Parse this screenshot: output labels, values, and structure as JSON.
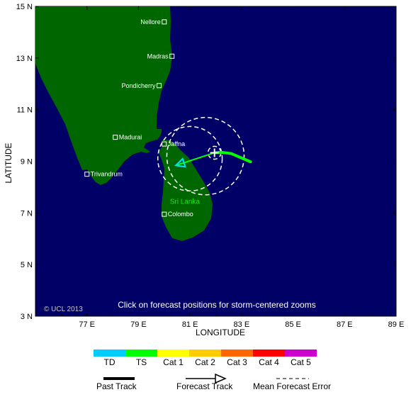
{
  "map": {
    "lon_range": [
      75,
      89
    ],
    "lat_range": [
      3,
      15
    ],
    "ocean_color": "#000066",
    "land_color": "#006600",
    "xlabel": "LONGITUDE",
    "ylabel": "LATITUDE",
    "lon_ticks": [
      {
        "value": 77,
        "label": "77 E"
      },
      {
        "value": 79,
        "label": "79 E"
      },
      {
        "value": 81,
        "label": "81 E"
      },
      {
        "value": 83,
        "label": "83 E"
      },
      {
        "value": 85,
        "label": "85 E"
      },
      {
        "value": 87,
        "label": "87 E"
      },
      {
        "value": 89,
        "label": "89 E"
      }
    ],
    "lat_ticks": [
      {
        "value": 3,
        "label": "3 N"
      },
      {
        "value": 5,
        "label": "5 N"
      },
      {
        "value": 7,
        "label": "7 N"
      },
      {
        "value": 9,
        "label": "9 N"
      },
      {
        "value": 11,
        "label": "11 N"
      },
      {
        "value": 13,
        "label": "13 N"
      },
      {
        "value": 15,
        "label": "15 N"
      }
    ],
    "cities": [
      {
        "name": "Nellore",
        "lon": 80.0,
        "lat": 14.4
      },
      {
        "name": "Madras",
        "lon": 80.3,
        "lat": 13.07
      },
      {
        "name": "Pondicherry",
        "lon": 79.8,
        "lat": 11.93
      },
      {
        "name": "Madurai",
        "lon": 78.1,
        "lat": 9.93
      },
      {
        "name": "Jaffna",
        "lon": 80.0,
        "lat": 9.67
      },
      {
        "name": "Trivandrum",
        "lon": 77.0,
        "lat": 8.5
      },
      {
        "name": "Colombo",
        "lon": 80.0,
        "lat": 6.95
      }
    ],
    "country_label": {
      "text": "Sri Lanka",
      "lon": 80.8,
      "lat": 7.35
    },
    "note": "Click on forecast positions for storm-centered zooms",
    "credit": "© UCL 2013"
  },
  "storm": {
    "past_track_color": "#00ff00",
    "past_track": [
      [
        83.35,
        8.98
      ],
      [
        82.6,
        9.3
      ],
      [
        82.2,
        9.35
      ],
      [
        82.0,
        9.33
      ]
    ],
    "current_position": [
      81.95,
      9.33
    ],
    "forecast_track": [
      [
        81.95,
        9.33
      ],
      [
        80.45,
        8.84
      ]
    ],
    "forecast_arrow_color": "#00e0ff",
    "error_circles": [
      {
        "lon": 81.95,
        "lat": 9.33,
        "radius_deg": 0.25
      },
      {
        "lon": 81.0,
        "lat": 9.1,
        "radius_deg": 1.25
      },
      {
        "lon": 81.6,
        "lat": 9.2,
        "radius_deg": 1.5
      }
    ]
  },
  "legend": {
    "categories": [
      {
        "label": "TD",
        "color": "#00ccff"
      },
      {
        "label": "TS",
        "color": "#00ff00"
      },
      {
        "label": "Cat 1",
        "color": "#ffff00"
      },
      {
        "label": "Cat 2",
        "color": "#ffcc00"
      },
      {
        "label": "Cat 3",
        "color": "#ff6600"
      },
      {
        "label": "Cat 4",
        "color": "#ff0000"
      },
      {
        "label": "Cat 5",
        "color": "#cc00cc"
      }
    ],
    "past_track_label": "Past Track",
    "forecast_track_label": "Forecast Track",
    "mean_error_label": "Mean Forecast Error"
  }
}
